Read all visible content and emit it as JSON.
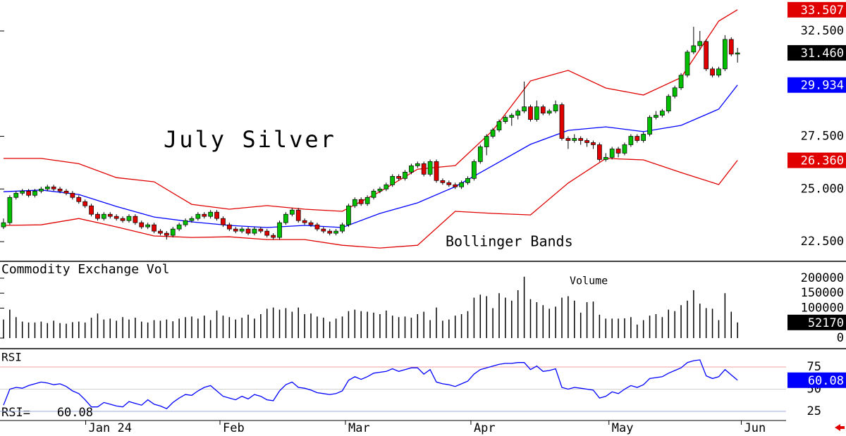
{
  "chart_data": [
    {
      "type": "candlestick",
      "title": "July Silver",
      "annotation": "Bollinger Bands",
      "up_color": "#00c000",
      "down_color": "#e00000",
      "xlim": [
        -0.56,
        124.4
      ],
      "ylim": [
        21.6,
        33.97
      ],
      "yticks": [
        {
          "value": 22.5,
          "label": "22.500"
        },
        {
          "value": 25,
          "label": "25.000"
        },
        {
          "value": 27.5,
          "label": "27.500"
        },
        {
          "value": 32.5,
          "label": "32.500"
        }
      ],
      "ohlc": [
        [
          23.2,
          23.6,
          23.1,
          23.4
        ],
        [
          23.4,
          24.7,
          23.3,
          24.6
        ],
        [
          24.6,
          24.9,
          24.5,
          24.8
        ],
        [
          24.8,
          25.0,
          24.7,
          24.9
        ],
        [
          24.9,
          25.0,
          24.6,
          24.7
        ],
        [
          24.7,
          25.0,
          24.6,
          24.9
        ],
        [
          24.9,
          25.1,
          24.8,
          25.0
        ],
        [
          25.0,
          25.2,
          24.9,
          25.1
        ],
        [
          25.1,
          25.2,
          24.9,
          25.0
        ],
        [
          25.0,
          25.1,
          24.8,
          24.9
        ],
        [
          24.9,
          25.0,
          24.7,
          24.8
        ],
        [
          24.8,
          24.9,
          24.5,
          24.6
        ],
        [
          24.6,
          24.7,
          24.3,
          24.4
        ],
        [
          24.4,
          24.5,
          24.1,
          24.2
        ],
        [
          24.2,
          24.3,
          23.7,
          23.8
        ],
        [
          23.8,
          23.9,
          23.5,
          23.6
        ],
        [
          23.6,
          23.9,
          23.5,
          23.8
        ],
        [
          23.8,
          23.9,
          23.6,
          23.7
        ],
        [
          23.7,
          23.8,
          23.5,
          23.6
        ],
        [
          23.6,
          23.7,
          23.4,
          23.5
        ],
        [
          23.5,
          23.8,
          23.4,
          23.7
        ],
        [
          23.7,
          23.8,
          23.3,
          23.4
        ],
        [
          23.4,
          23.5,
          23.1,
          23.2
        ],
        [
          23.2,
          23.4,
          23.1,
          23.3
        ],
        [
          23.3,
          23.4,
          22.9,
          23.0
        ],
        [
          23.0,
          23.1,
          22.8,
          22.9
        ],
        [
          22.9,
          23.0,
          22.6,
          22.8
        ],
        [
          22.8,
          23.2,
          22.7,
          23.1
        ],
        [
          23.1,
          23.4,
          23.0,
          23.3
        ],
        [
          23.3,
          23.6,
          23.2,
          23.5
        ],
        [
          23.5,
          23.7,
          23.4,
          23.6
        ],
        [
          23.6,
          23.9,
          23.5,
          23.8
        ],
        [
          23.8,
          23.9,
          23.6,
          23.7
        ],
        [
          23.7,
          24.0,
          23.6,
          23.9
        ],
        [
          23.9,
          24.0,
          23.5,
          23.6
        ],
        [
          23.6,
          23.7,
          23.2,
          23.3
        ],
        [
          23.3,
          23.4,
          23.0,
          23.1
        ],
        [
          23.1,
          23.2,
          22.9,
          23.0
        ],
        [
          23.0,
          23.2,
          22.9,
          23.1
        ],
        [
          23.1,
          23.2,
          22.8,
          22.9
        ],
        [
          22.9,
          23.2,
          22.8,
          23.1
        ],
        [
          23.1,
          23.2,
          22.9,
          23.0
        ],
        [
          23.0,
          23.1,
          22.7,
          22.8
        ],
        [
          22.8,
          22.9,
          22.6,
          22.7
        ],
        [
          22.7,
          23.5,
          22.6,
          23.4
        ],
        [
          23.4,
          23.9,
          23.3,
          23.8
        ],
        [
          23.8,
          24.1,
          23.7,
          24.0
        ],
        [
          24.0,
          24.1,
          23.4,
          23.5
        ],
        [
          23.5,
          23.6,
          23.3,
          23.4
        ],
        [
          23.4,
          23.5,
          23.2,
          23.3
        ],
        [
          23.3,
          23.4,
          23.0,
          23.1
        ],
        [
          23.1,
          23.2,
          22.9,
          23.0
        ],
        [
          23.0,
          23.1,
          22.8,
          22.9
        ],
        [
          22.9,
          23.1,
          22.8,
          23.0
        ],
        [
          23.0,
          23.4,
          22.9,
          23.3
        ],
        [
          23.3,
          24.3,
          23.2,
          24.2
        ],
        [
          24.2,
          24.6,
          24.1,
          24.5
        ],
        [
          24.5,
          24.6,
          24.2,
          24.3
        ],
        [
          24.3,
          24.7,
          24.2,
          24.6
        ],
        [
          24.6,
          25.0,
          24.5,
          24.9
        ],
        [
          24.9,
          25.1,
          24.8,
          25.0
        ],
        [
          25.0,
          25.3,
          24.9,
          25.2
        ],
        [
          25.2,
          25.7,
          25.1,
          25.6
        ],
        [
          25.6,
          25.7,
          25.4,
          25.5
        ],
        [
          25.5,
          25.9,
          25.4,
          25.8
        ],
        [
          25.8,
          26.2,
          25.7,
          26.1
        ],
        [
          26.1,
          26.3,
          26.0,
          26.2
        ],
        [
          26.2,
          26.3,
          25.6,
          25.7
        ],
        [
          25.7,
          26.4,
          25.6,
          26.3
        ],
        [
          26.3,
          26.4,
          25.3,
          25.4
        ],
        [
          25.4,
          25.5,
          25.2,
          25.3
        ],
        [
          25.3,
          25.4,
          25.1,
          25.2
        ],
        [
          25.2,
          25.3,
          25.0,
          25.1
        ],
        [
          25.1,
          25.4,
          25.0,
          25.3
        ],
        [
          25.3,
          25.6,
          25.2,
          25.5
        ],
        [
          25.5,
          26.4,
          25.4,
          26.3
        ],
        [
          26.3,
          27.1,
          26.2,
          27.0
        ],
        [
          27.0,
          27.6,
          26.6,
          27.5
        ],
        [
          27.5,
          27.9,
          27.4,
          27.8
        ],
        [
          27.8,
          28.3,
          27.7,
          28.2
        ],
        [
          28.2,
          28.5,
          28.1,
          28.4
        ],
        [
          28.4,
          28.6,
          28.0,
          28.5
        ],
        [
          28.5,
          28.8,
          28.3,
          28.7
        ],
        [
          28.7,
          30.1,
          28.6,
          28.9
        ],
        [
          28.9,
          29.0,
          28.2,
          28.3
        ],
        [
          28.3,
          29.2,
          28.2,
          28.9
        ],
        [
          28.9,
          29.0,
          28.5,
          28.6
        ],
        [
          28.6,
          28.8,
          28.5,
          28.7
        ],
        [
          28.7,
          29.2,
          28.6,
          29.0
        ],
        [
          29.0,
          29.1,
          27.3,
          27.4
        ],
        [
          27.4,
          27.5,
          26.9,
          27.3
        ],
        [
          27.3,
          27.6,
          27.2,
          27.4
        ],
        [
          27.4,
          27.5,
          27.1,
          27.3
        ],
        [
          27.3,
          27.4,
          27.0,
          27.2
        ],
        [
          27.2,
          27.3,
          26.9,
          27.1
        ],
        [
          27.1,
          27.2,
          26.3,
          26.4
        ],
        [
          26.4,
          26.7,
          26.3,
          26.5
        ],
        [
          26.5,
          27.0,
          26.4,
          26.9
        ],
        [
          26.9,
          27.0,
          26.5,
          26.7
        ],
        [
          26.7,
          27.2,
          26.6,
          27.1
        ],
        [
          27.1,
          27.6,
          27.0,
          27.5
        ],
        [
          27.5,
          27.6,
          27.2,
          27.3
        ],
        [
          27.3,
          27.7,
          27.2,
          27.6
        ],
        [
          27.6,
          28.5,
          27.5,
          28.4
        ],
        [
          28.4,
          28.7,
          28.3,
          28.5
        ],
        [
          28.5,
          28.8,
          28.4,
          28.7
        ],
        [
          28.7,
          29.5,
          28.6,
          29.4
        ],
        [
          29.4,
          29.9,
          29.3,
          29.8
        ],
        [
          29.8,
          30.5,
          29.7,
          30.4
        ],
        [
          30.4,
          31.6,
          30.3,
          31.5
        ],
        [
          31.5,
          32.7,
          31.4,
          31.8
        ],
        [
          31.8,
          32.5,
          31.6,
          32.0
        ],
        [
          32.0,
          32.1,
          30.6,
          30.7
        ],
        [
          30.7,
          30.8,
          30.3,
          30.4
        ],
        [
          30.4,
          30.8,
          30.3,
          30.7
        ],
        [
          30.7,
          32.3,
          30.6,
          32.1
        ],
        [
          32.1,
          32.2,
          31.3,
          31.4
        ],
        [
          31.4,
          31.7,
          31.0,
          31.46
        ]
      ],
      "last_close_label": "31.460",
      "last_close_color": "#000000",
      "bands": {
        "x": [
          0,
          6,
          12,
          18,
          24,
          30,
          36,
          42,
          48,
          54,
          60,
          66,
          72,
          78,
          84,
          90,
          96,
          102,
          108,
          114,
          117
        ],
        "upper": [
          26.45,
          26.45,
          26.2,
          25.54,
          25.34,
          24.27,
          24.04,
          24.21,
          24.04,
          23.94,
          24.87,
          25.94,
          26.11,
          27.78,
          30.13,
          30.63,
          29.79,
          29.46,
          30.29,
          32.97,
          33.507
        ],
        "middle": [
          24.87,
          24.95,
          24.74,
          24.17,
          23.67,
          23.44,
          23.27,
          23.17,
          23.27,
          23.17,
          23.84,
          24.34,
          25.11,
          26.11,
          27.12,
          27.78,
          27.95,
          27.72,
          28.02,
          28.79,
          29.934
        ],
        "lower": [
          23.27,
          23.3,
          23.6,
          23.2,
          22.77,
          22.7,
          22.73,
          22.6,
          22.6,
          22.33,
          22.2,
          22.33,
          23.94,
          23.84,
          23.77,
          25.28,
          26.45,
          26.38,
          25.78,
          25.21,
          26.36
        ]
      },
      "band_colors": {
        "upper": "#e00000",
        "middle": "#0000ff",
        "lower": "#e00000"
      },
      "band_labels": {
        "upper": "33.507",
        "middle": "29.934",
        "lower": "26.360"
      }
    },
    {
      "type": "bar",
      "title": "Commodity Exchange Vol",
      "annotation": "Volume",
      "color": "#000000",
      "label_color": "#000000",
      "xlim": [
        -0.56,
        124.4
      ],
      "ylim": [
        -33000,
        254000
      ],
      "yticks": [
        0,
        100000,
        150000,
        200000
      ],
      "values": [
        62000,
        95000,
        70000,
        55000,
        52000,
        52000,
        55000,
        50000,
        58000,
        50000,
        48000,
        53000,
        55000,
        52000,
        68000,
        82000,
        62000,
        65000,
        58000,
        70000,
        62000,
        68000,
        55000,
        52000,
        60000,
        58000,
        62000,
        56000,
        65000,
        70000,
        72000,
        65000,
        75000,
        60000,
        92000,
        75000,
        70000,
        62000,
        68000,
        78000,
        65000,
        80000,
        98000,
        102000,
        95000,
        100000,
        88000,
        102000,
        80000,
        82000,
        72000,
        68000,
        55000,
        65000,
        72000,
        90000,
        95000,
        90000,
        88000,
        85000,
        80000,
        92000,
        75000,
        70000,
        72000,
        68000,
        80000,
        88000,
        60000,
        102000,
        58000,
        62000,
        75000,
        80000,
        90000,
        135000,
        145000,
        140000,
        100000,
        150000,
        135000,
        125000,
        160000,
        205000,
        130000,
        120000,
        110000,
        98000,
        105000,
        135000,
        140000,
        125000,
        85000,
        120000,
        122000,
        78000,
        65000,
        65000,
        65000,
        66000,
        70000,
        45000,
        60000,
        75000,
        80000,
        70000,
        95000,
        90000,
        110000,
        125000,
        160000,
        115000,
        100000,
        98000,
        60000,
        150000,
        88000,
        52170
      ]
    },
    {
      "type": "line",
      "title": "RSI",
      "readout": "RSI=",
      "color": "#0000ff",
      "label_color": "#0000ff",
      "xlim": [
        -0.56,
        124.4
      ],
      "ylim": [
        14.7,
        94.8
      ],
      "yticks": [
        25,
        50,
        75
      ],
      "tick_colors": [
        "#9aa8e0",
        "#d0d0d0",
        "#f0a0a0"
      ],
      "values": [
        32,
        50,
        52,
        51,
        54,
        56,
        58,
        57,
        55,
        56,
        53,
        48,
        45,
        38,
        30,
        30,
        35,
        33,
        31,
        30,
        36,
        34,
        32,
        38,
        33,
        31,
        28,
        35,
        40,
        44,
        43,
        48,
        52,
        54,
        48,
        42,
        40,
        38,
        42,
        39,
        44,
        42,
        38,
        37,
        48,
        55,
        58,
        52,
        51,
        49,
        46,
        45,
        44,
        45,
        48,
        60,
        64,
        61,
        64,
        68,
        69,
        70,
        73,
        70,
        72,
        74,
        74,
        67,
        72,
        58,
        56,
        55,
        53,
        56,
        59,
        67,
        72,
        74,
        76,
        78,
        79,
        79,
        80,
        80,
        72,
        76,
        70,
        71,
        73,
        52,
        50,
        52,
        51,
        50,
        49,
        40,
        42,
        47,
        45,
        50,
        54,
        52,
        55,
        62,
        63,
        64,
        68,
        71,
        74,
        80,
        82,
        83,
        65,
        62,
        64,
        72,
        66,
        60.08
      ],
      "xticks": [
        {
          "value": 13.1,
          "label": "Jan 24"
        },
        {
          "value": 34.5,
          "label": "Feb"
        },
        {
          "value": 54.5,
          "label": "Mar"
        },
        {
          "value": 74.5,
          "label": "Apr"
        },
        {
          "value": 96.5,
          "label": "May"
        },
        {
          "value": 117.6,
          "label": "Jun"
        }
      ]
    }
  ]
}
